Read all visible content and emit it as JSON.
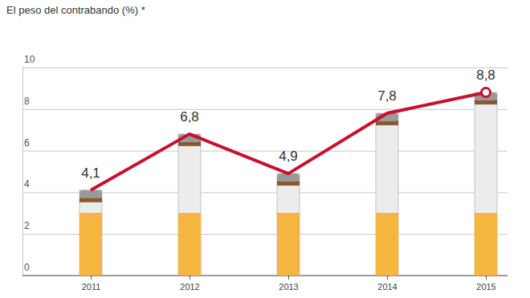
{
  "chart_data": {
    "type": "line",
    "title": "El peso del contrabando (%) *",
    "categories": [
      "2011",
      "2012",
      "2013",
      "2014",
      "2015"
    ],
    "series": [
      {
        "type": "bar",
        "color": "#f4b63f",
        "values": [
          4.1,
          6.8,
          4.9,
          7.8,
          8.8
        ]
      },
      {
        "type": "line",
        "color": "#c8102e",
        "values": [
          4.1,
          6.8,
          4.9,
          7.8,
          8.8
        ],
        "value_labels": [
          "4,1",
          "6,8",
          "4,9",
          "7,8",
          "8,8"
        ]
      }
    ],
    "data_labels": true,
    "ylim": [
      0,
      10
    ],
    "yticks": [
      0,
      2,
      4,
      6,
      8,
      10
    ],
    "grid": true
  }
}
